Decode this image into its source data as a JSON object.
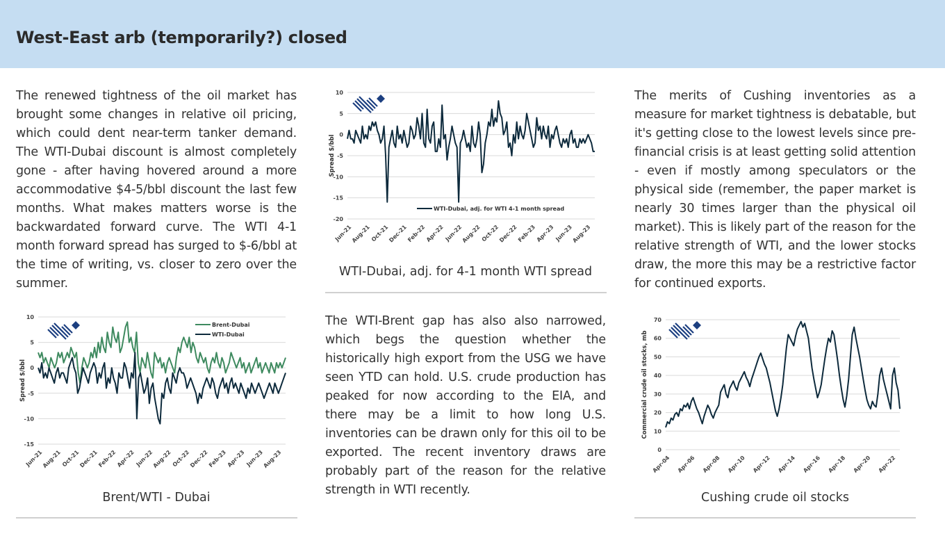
{
  "header": {
    "title": "West-East arb (temporarily?) closed"
  },
  "paragraphs": {
    "left": "The renewed tightness of the oil market has brought some changes in relative oil pricing, which could dent near-term tanker demand. The WTI-Dubai discount is almost completely gone - after having hovered around a more accommodative $4-5/bbl discount the last few months. What makes matters worse is the backwardated forward curve. The WTI 4-1 month forward spread has surged to $-6/bbl at the time of writing, vs. closer to zero over the summer.",
    "middle": "The WTI-Brent gap has also also narrowed, which begs the question whether the historically high export from the USG we have seen YTD can hold. U.S. crude production has peaked for now according to the EIA, and there may be a limit to how long U.S. inventories can be drawn only for this oil to be exported. The recent inventory draws are probably part of the reason for the relative strength in WTI recently.",
    "right": "The merits of Cushing inventories as a measure for market tightness is debatable, but it's getting close to the lowest levels since pre-financial crisis is at least getting solid attention - even if mostly among speculators or the physical side (remember, the paper market is nearly 30 times larger than the physical oil market). This is likely part of the reason for the relative strength of WTI, and the lower stocks draw, the more this may be a restrictive factor for continued exports."
  },
  "captions": {
    "chart1": "WTI-Dubai, adj. for 4-1 month WTI spread",
    "chart2": "Brent/WTI - Dubai",
    "chart3": "Cushing crude oil stocks"
  },
  "colors": {
    "dark": "#0d2a3c",
    "green": "#3e8a5f",
    "grid": "#d9d9d9",
    "header_bg": "#c5ddf2"
  },
  "chart_data": [
    {
      "id": "wti-dubai-adj",
      "type": "line",
      "title": "WTI-Dubai, adj. for 4-1 month WTI spread",
      "xlabel": "",
      "ylabel": "Spread $/bbl",
      "ylim": [
        -20,
        10
      ],
      "yticks": [
        10,
        5,
        0,
        -5,
        -10,
        -15,
        -20
      ],
      "xticks": [
        "Jun-21",
        "Aug-21",
        "Oct-21",
        "Dec-21",
        "Feb-22",
        "Apr-22",
        "Jun-22",
        "Aug-22",
        "Oct-22",
        "Dec-22",
        "Feb-23",
        "Apr-23",
        "Jun-23",
        "Aug-23"
      ],
      "legend": "bottom-right",
      "series": [
        {
          "name": "WTI-Dubai, adj. for WTI 4-1 month spread",
          "color": "#0d2a3c",
          "values": [
            -1,
            1,
            -1,
            -1,
            -2,
            1,
            0,
            -1,
            -2,
            2,
            -1,
            0,
            -1,
            2,
            1,
            3,
            2,
            3,
            1,
            0,
            -2,
            -1,
            2,
            -5,
            -16,
            -3,
            -1,
            1,
            -2,
            -3,
            2,
            -1,
            0,
            -2,
            1,
            -1,
            -3,
            -2,
            2,
            1,
            -1,
            0,
            4,
            2,
            -1,
            5,
            -2,
            -3,
            6,
            -1,
            -2,
            2,
            3,
            -4,
            -4,
            -1,
            -3,
            7,
            -1,
            0,
            -6,
            -3,
            -1,
            2,
            0,
            -2,
            -3,
            -16,
            -2,
            -1,
            1,
            -1,
            -3,
            -2,
            -4,
            2,
            -2,
            -3,
            -1,
            3,
            0,
            -9,
            -7,
            -2,
            0,
            3,
            2,
            6,
            2,
            4,
            3,
            8,
            5,
            4,
            0,
            1,
            3,
            -3,
            -2,
            -5,
            0,
            -2,
            3,
            -1,
            2,
            0,
            -1,
            1,
            5,
            3,
            1,
            -1,
            -3,
            -2,
            4,
            1,
            2,
            -1,
            2,
            0,
            -1,
            2,
            -3,
            0,
            -1,
            1,
            2,
            0,
            -2,
            -3,
            -1,
            -2,
            -1,
            -3,
            0,
            1,
            -2,
            -1,
            -3,
            -3,
            -1,
            -2,
            -1,
            -2,
            -1,
            0,
            -1,
            -2,
            -4,
            -4
          ]
        }
      ]
    },
    {
      "id": "brent-wti-dubai",
      "type": "line",
      "title": "Brent/WTI - Dubai",
      "xlabel": "",
      "ylabel": "Spread $/bbl",
      "ylim": [
        -15,
        10
      ],
      "yticks": [
        10,
        5,
        0,
        -5,
        -10,
        -15
      ],
      "xticks": [
        "Jun-21",
        "Aug-21",
        "Oct-21",
        "Dec-21",
        "Feb-22",
        "Apr-22",
        "Jun-22",
        "Aug-22",
        "Oct-22",
        "Dec-22",
        "Feb-23",
        "Apr-23",
        "Jun-23",
        "Aug-23"
      ],
      "legend": "top-right",
      "series": [
        {
          "name": "Brent-Dubai",
          "color": "#3e8a5f",
          "values": [
            3,
            2,
            3,
            1,
            2,
            1,
            0,
            2,
            1,
            0,
            1,
            3,
            2,
            3,
            1,
            2,
            3,
            2,
            4,
            3,
            2,
            3,
            -1,
            -3,
            0,
            2,
            1,
            0,
            1,
            3,
            2,
            4,
            2,
            5,
            3,
            6,
            4,
            3,
            7,
            5,
            4,
            8,
            6,
            5,
            7,
            3,
            4,
            6,
            8,
            9,
            5,
            6,
            4,
            3,
            7,
            1,
            -1,
            2,
            1,
            0,
            3,
            1,
            -1,
            -2,
            3,
            2,
            1,
            2,
            0,
            1,
            -1,
            1,
            2,
            1,
            0,
            -1,
            2,
            4,
            3,
            5,
            6,
            5,
            4,
            6,
            3,
            5,
            4,
            2,
            1,
            3,
            2,
            1,
            2,
            0,
            -1,
            1,
            2,
            1,
            3,
            1,
            0,
            2,
            1,
            -1,
            0,
            1,
            3,
            2,
            1,
            0,
            1,
            2,
            0,
            1,
            -1,
            0,
            1,
            -1,
            0,
            1,
            2,
            0,
            1,
            -1,
            0,
            1,
            0,
            -1,
            1,
            0,
            -1,
            1,
            0,
            1,
            0,
            1,
            2
          ]
        },
        {
          "name": "WTI-Dubai",
          "color": "#0d2a3c",
          "values": [
            0,
            -1,
            1,
            -2,
            -1,
            -2,
            0,
            -1,
            -2,
            -3,
            -1,
            0,
            -2,
            -1,
            -1,
            -2,
            -3,
            0,
            1,
            2,
            0,
            -1,
            -5,
            -4,
            -2,
            0,
            -1,
            -2,
            -3,
            -1,
            0,
            1,
            0,
            -3,
            -1,
            -2,
            0,
            1,
            -4,
            -2,
            -3,
            0,
            -2,
            -3,
            -5,
            -1,
            -2,
            -2,
            1,
            0,
            -2,
            -4,
            -1,
            -2,
            3,
            -10,
            -2,
            -1,
            -3,
            -5,
            -4,
            -2,
            -7,
            -4,
            -3,
            -6,
            -8,
            -10,
            -11,
            -5,
            -6,
            -3,
            -2,
            -4,
            -5,
            -1,
            -2,
            -3,
            -1,
            0,
            -1,
            -1,
            -2,
            -4,
            -3,
            -2,
            -3,
            -4,
            -5,
            -7,
            -5,
            -6,
            -4,
            -3,
            -2,
            -3,
            -4,
            -2,
            -3,
            -5,
            -6,
            -4,
            -3,
            -2,
            -4,
            -3,
            -5,
            -3,
            -2,
            -4,
            -3,
            -4,
            -5,
            -3,
            -4,
            -5,
            -6,
            -4,
            -5,
            -3,
            -4,
            -5,
            -4,
            -3,
            -4,
            -5,
            -6,
            -5,
            -4,
            -3,
            -4,
            -5,
            -3,
            -4,
            -5,
            -4,
            -3,
            -2,
            -1
          ]
        }
      ]
    },
    {
      "id": "cushing-stocks",
      "type": "line",
      "title": "Cushing crude oil stocks",
      "xlabel": "",
      "ylabel": "Commercial crude oil stocks, mb",
      "ylim": [
        0,
        70
      ],
      "yticks": [
        70,
        60,
        50,
        40,
        30,
        20,
        10,
        0
      ],
      "xticks": [
        "Apr-04",
        "Apr-06",
        "Apr-08",
        "Apr-10",
        "Apr-12",
        "Apr-14",
        "Apr-16",
        "Apr-18",
        "Apr-20",
        "Apr-22"
      ],
      "series": [
        {
          "name": "Cushing crude oil stocks",
          "color": "#0d2a3c",
          "values": [
            12,
            15,
            14,
            17,
            16,
            19,
            20,
            18,
            22,
            21,
            24,
            23,
            25,
            22,
            26,
            28,
            25,
            22,
            20,
            17,
            14,
            18,
            21,
            24,
            22,
            19,
            17,
            20,
            22,
            24,
            31,
            33,
            35,
            30,
            28,
            33,
            35,
            37,
            34,
            32,
            36,
            38,
            40,
            42,
            39,
            37,
            34,
            38,
            41,
            44,
            47,
            50,
            52,
            49,
            46,
            44,
            40,
            36,
            31,
            26,
            21,
            18,
            22,
            28,
            35,
            45,
            55,
            62,
            60,
            58,
            56,
            61,
            65,
            67,
            69,
            66,
            68,
            64,
            60,
            52,
            44,
            38,
            33,
            28,
            31,
            35,
            42,
            49,
            55,
            60,
            58,
            64,
            62,
            55,
            48,
            40,
            33,
            27,
            23,
            29,
            38,
            50,
            62,
            66,
            60,
            55,
            50,
            44,
            38,
            32,
            27,
            24,
            22,
            26,
            24,
            23,
            30,
            40,
            44,
            38,
            34,
            30,
            26,
            22,
            40,
            44,
            36,
            32,
            22
          ]
        }
      ]
    }
  ]
}
